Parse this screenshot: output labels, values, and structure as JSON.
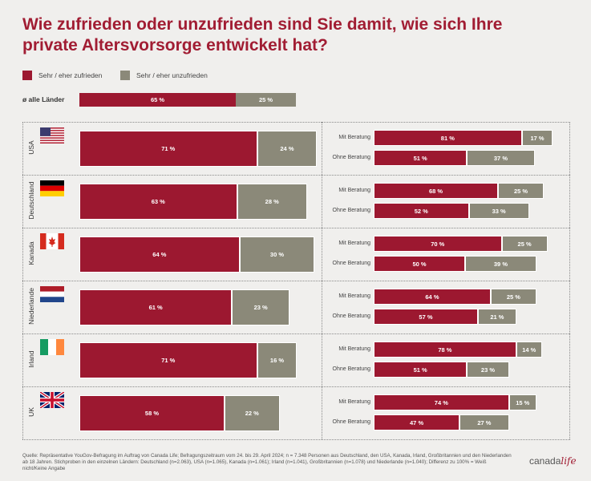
{
  "title": "Wie zufrieden oder unzufrieden sind Sie damit, wie sich Ihre private Altersvorsorge entwickelt hat?",
  "legend": {
    "satisfied": "Sehr / eher zufrieden",
    "unsatisfied": "Sehr / eher unzufrieden"
  },
  "colors": {
    "satisfied": "#9c1830",
    "unsatisfied": "#8b8979",
    "title": "#a11d33"
  },
  "average_label": "ø alle Länder",
  "sub_labels": {
    "with": "Mit Beratung",
    "without": "Ohne Beratung"
  },
  "chart_data": {
    "type": "bar",
    "title": "Wie zufrieden oder unzufrieden sind Sie damit, wie sich Ihre private Altersvorsorge entwickelt hat?",
    "series": [
      {
        "name": "Sehr / eher zufrieden"
      },
      {
        "name": "Sehr / eher unzufrieden"
      }
    ],
    "average": {
      "label": "ø alle Länder",
      "sat": 65,
      "unsat": 25,
      "sat_label": "65 %",
      "unsat_label": "25 %"
    },
    "countries": [
      {
        "name": "USA",
        "flag": "us-flag",
        "sat": 71,
        "unsat": 24,
        "sat_label": "71 %",
        "unsat_label": "24 %",
        "with_sat": 81,
        "with_unsat": 17,
        "with_sat_label": "81 %",
        "with_unsat_label": "17 %",
        "without_sat": 51,
        "without_unsat": 37,
        "without_sat_label": "51 %",
        "without_unsat_label": "37 %"
      },
      {
        "name": "Deutschland",
        "flag": "germany-flag",
        "sat": 63,
        "unsat": 28,
        "sat_label": "63 %",
        "unsat_label": "28 %",
        "with_sat": 68,
        "with_unsat": 25,
        "with_sat_label": "68 %",
        "with_unsat_label": "25 %",
        "without_sat": 52,
        "without_unsat": 33,
        "without_sat_label": "52 %",
        "without_unsat_label": "33 %"
      },
      {
        "name": "Kanada",
        "flag": "canada-flag",
        "sat": 64,
        "unsat": 30,
        "sat_label": "64 %",
        "unsat_label": "30 %",
        "with_sat": 70,
        "with_unsat": 25,
        "with_sat_label": "70 %",
        "with_unsat_label": "25 %",
        "without_sat": 50,
        "without_unsat": 39,
        "without_sat_label": "50 %",
        "without_unsat_label": "39 %"
      },
      {
        "name": "Niederlande",
        "flag": "netherlands-flag",
        "sat": 61,
        "unsat": 23,
        "sat_label": "61 %",
        "unsat_label": "23 %",
        "with_sat": 64,
        "with_unsat": 25,
        "with_sat_label": "64 %",
        "with_unsat_label": "25 %",
        "without_sat": 57,
        "without_unsat": 21,
        "without_sat_label": "57 %",
        "without_unsat_label": "21 %"
      },
      {
        "name": "Irland",
        "flag": "ireland-flag",
        "sat": 71,
        "unsat": 16,
        "sat_label": "71 %",
        "unsat_label": "16 %",
        "with_sat": 78,
        "with_unsat": 14,
        "with_sat_label": "78 %",
        "with_unsat_label": "14 %",
        "without_sat": 51,
        "without_unsat": 23,
        "without_sat_label": "51 %",
        "without_unsat_label": "23 %"
      },
      {
        "name": "UK",
        "flag": "uk-flag",
        "sat": 58,
        "unsat": 22,
        "sat_label": "58 %",
        "unsat_label": "22 %",
        "with_sat": 74,
        "with_unsat": 15,
        "with_sat_label": "74 %",
        "with_unsat_label": "15 %",
        "without_sat": 47,
        "without_unsat": 27,
        "without_sat_label": "47 %",
        "without_unsat_label": "27 %"
      }
    ]
  },
  "source": "Quelle: Repräsentative YouGov-Befragung im Auftrag von Canada Life; Befragungszeitraum vom 24. bis 29. April 2024; n = 7.348 Personen aus Deutschland, den USA, Kanada, Irland, Großbritannien und den Niederlanden ab 18 Jahren. Stichproben in den einzelnen Ländern: Deutschland (n=2.063), USA (n=1.065), Kanada (n=1.061); Irland (n=1.041), Großbritannien (n=1.078) und Niederlande (n=1.040); Differenz zu 100% = Weiß nicht/Keine Angabe",
  "logo": {
    "part1": "canada",
    "part2": "life"
  }
}
